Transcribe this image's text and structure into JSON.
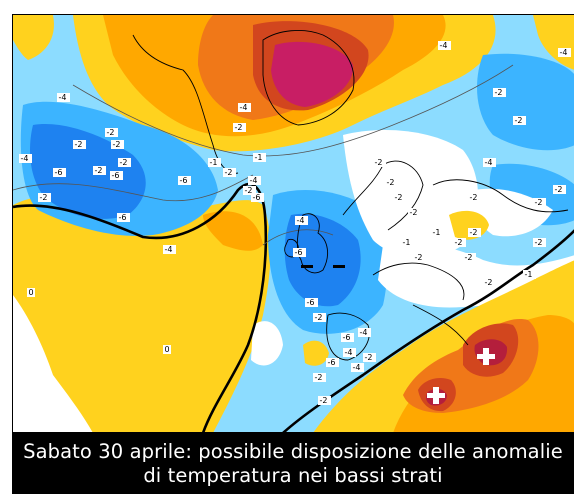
{
  "caption": {
    "line1": "Sabato 30 aprile: possibile disposizione delle anomalie",
    "line2": "di temperatura nei bassi strati"
  },
  "map": {
    "variable": "temperature anomaly (lower levels)",
    "palette": {
      "warm_1": "#ffd21e",
      "warm_2": "#ffa800",
      "warm_3": "#f07818",
      "warm_4": "#d2461e",
      "warm_5": "#c81e64",
      "cold_1": "#8cdcff",
      "cold_2": "#3cb4ff",
      "cold_3": "#1e82f0",
      "neutral": "#ffffff"
    },
    "contour_labels": [
      "-4",
      "-6",
      "-6",
      "-2",
      "-4",
      "-6",
      "-6",
      "-4",
      "-2",
      "-2",
      "-2",
      "-2",
      "-2",
      "-4",
      "-2",
      "-1",
      "-4",
      "-6",
      "-4",
      "-6",
      "-1",
      "-2",
      "-2",
      "-6",
      "-2",
      "-6",
      "-4",
      "-4",
      "-6",
      "-2",
      "-4",
      "-2",
      "-2",
      "-2",
      "-2",
      "-2",
      "-1",
      "-2",
      "-1",
      "-2",
      "-2",
      "-2",
      "-4",
      "-2",
      "-2",
      "-2",
      "-2",
      "-2",
      "-1",
      "-2",
      "-2",
      "-4",
      "-4",
      "0",
      "0",
      "-2"
    ],
    "markers": [
      {
        "type": "minus",
        "name": "cold-anomaly-marker-1"
      },
      {
        "type": "minus",
        "name": "cold-anomaly-marker-2"
      },
      {
        "type": "plus",
        "name": "warm-anomaly-marker-1"
      },
      {
        "type": "plus",
        "name": "warm-anomaly-marker-2"
      }
    ]
  }
}
